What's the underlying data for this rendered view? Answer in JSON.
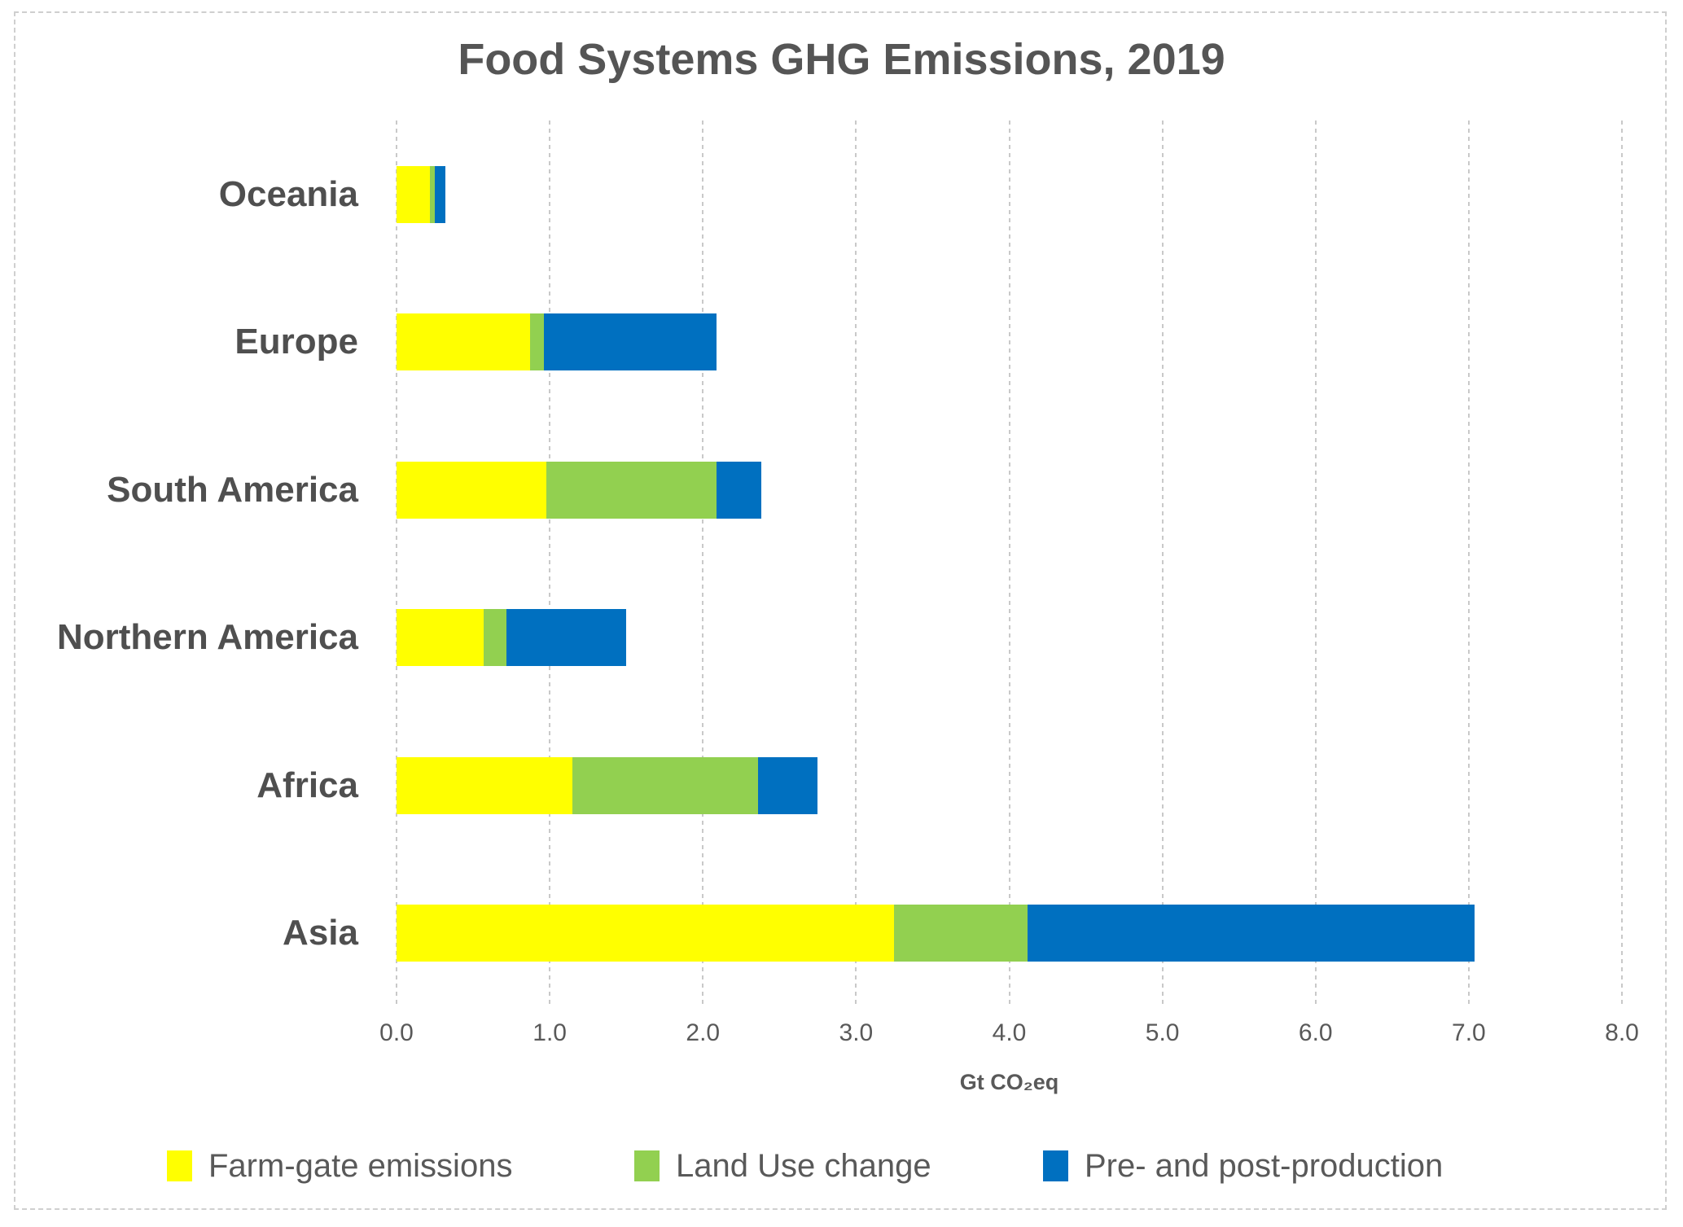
{
  "chart_data": {
    "type": "bar",
    "orientation": "horizontal",
    "stacked": true,
    "title": "Food Systems GHG Emissions, 2019",
    "xlabel": "Gt CO₂eq",
    "xlim": [
      0.0,
      8.0
    ],
    "x_ticks": [
      "0.0",
      "1.0",
      "2.0",
      "3.0",
      "4.0",
      "5.0",
      "6.0",
      "7.0",
      "8.0"
    ],
    "grid": "vertical-dashed",
    "legend_position": "bottom",
    "categories_top_to_bottom": [
      "Oceania",
      "Europe",
      "South America",
      "Northern America",
      "Africa",
      "Asia"
    ],
    "series": [
      {
        "name": "Farm-gate emissions",
        "color": "#FFFF00",
        "values": [
          0.22,
          0.87,
          0.98,
          0.57,
          1.15,
          3.25
        ]
      },
      {
        "name": "Land Use change",
        "color": "#92D050",
        "values": [
          0.03,
          0.09,
          1.11,
          0.15,
          1.21,
          0.87
        ]
      },
      {
        "name": "Pre- and post-production",
        "color": "#0070C0",
        "values": [
          0.07,
          1.13,
          0.29,
          0.78,
          0.39,
          2.92
        ]
      }
    ],
    "totals": [
      0.32,
      2.09,
      2.38,
      1.5,
      2.75,
      7.04
    ]
  },
  "style_colors": {
    "title_text": "#555555",
    "category_text": "#4f4f4f",
    "tick_text": "#595959",
    "gridline": "#c9c9c9",
    "chart_border": "#cfcfcf",
    "background": "#ffffff"
  }
}
